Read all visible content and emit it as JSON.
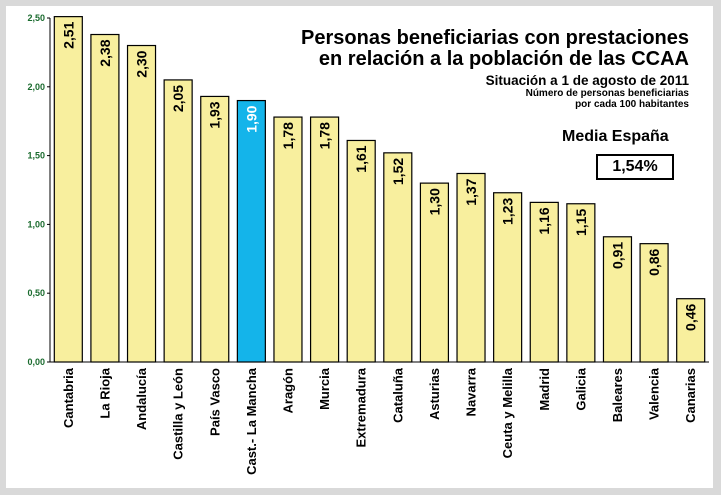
{
  "title": {
    "line1": "Personas beneficiarias con prestaciones",
    "line2": "en relación a la población de las CCAA",
    "subtitle": "Situación a 1 de agosto de 2011",
    "note1": "Número de personas beneficiarias",
    "note2": "por cada 100 habitantes"
  },
  "media": {
    "label": "Media España",
    "value": "1,54%"
  },
  "colors": {
    "bar": "#f8ef9e",
    "highlight": "#14b4ea",
    "axis_text": "#1a6b2e",
    "label_white": "#ffffff",
    "label_black": "#000000"
  },
  "chart_data": {
    "type": "bar",
    "categories": [
      "Cantabria",
      "La Rioja",
      "Andalucía",
      "Castilla y León",
      "País Vasco",
      "Cast.- La Mancha",
      "Aragón",
      "Murcia",
      "Extremadura",
      "Cataluña",
      "Asturias",
      "Navarra",
      "Ceuta y Melilla",
      "Madrid",
      "Galicia",
      "Baleares",
      "Valencia",
      "Canarias"
    ],
    "values": [
      2.51,
      2.38,
      2.3,
      2.05,
      1.93,
      1.9,
      1.78,
      1.78,
      1.61,
      1.52,
      1.3,
      1.37,
      1.23,
      1.16,
      1.15,
      0.91,
      0.86,
      0.46
    ],
    "value_labels": [
      "2,51",
      "2,38",
      "2,30",
      "2,05",
      "1,93",
      "1,90",
      "1,78",
      "1,78",
      "1,61",
      "1,52",
      "1,30",
      "1,37",
      "1,23",
      "1,16",
      "1,15",
      "0,91",
      "0,86",
      "0,46"
    ],
    "highlight_category": "Cast.- La Mancha",
    "ylim": [
      0,
      2.5
    ],
    "yticks": [
      0,
      0.5,
      1.0,
      1.5,
      2.0,
      2.5
    ],
    "ytick_labels": [
      "0,00",
      "0,50",
      "1,00",
      "1,50",
      "2,00",
      "2,50"
    ],
    "grid": false,
    "xlabel": "",
    "ylabel": ""
  }
}
